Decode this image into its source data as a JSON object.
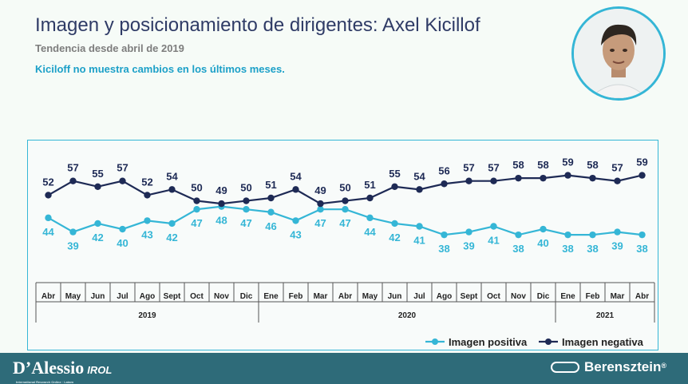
{
  "header": {
    "title": "Imagen y posicionamiento de dirigentes: Axel Kicillof",
    "subtitle": "Tendencia desde abril de 2019",
    "note": "Kiciloff no muestra cambios en los últimos meses."
  },
  "chart_data": {
    "type": "line",
    "categories": [
      "Abr",
      "May",
      "Jun",
      "Jul",
      "Ago",
      "Sept",
      "Oct",
      "Nov",
      "Dic",
      "Ene",
      "Feb",
      "Mar",
      "Abr",
      "May",
      "Jun",
      "Jul",
      "Ago",
      "Sept",
      "Oct",
      "Nov",
      "Dic",
      "Ene",
      "Feb",
      "Mar",
      "Abr"
    ],
    "years": [
      {
        "label": "2019",
        "from": 0,
        "to": 8
      },
      {
        "label": "2020",
        "from": 9,
        "to": 20
      },
      {
        "label": "2021",
        "from": 21,
        "to": 24
      }
    ],
    "series": [
      {
        "name": "Imagen positiva",
        "color": "#35b6d6",
        "values": [
          44,
          39,
          42,
          40,
          43,
          42,
          47,
          48,
          47,
          46,
          43,
          47,
          47,
          44,
          42,
          41,
          38,
          39,
          41,
          38,
          40,
          38,
          38,
          39,
          38
        ]
      },
      {
        "name": "Imagen negativa",
        "color": "#1e2a55",
        "values": [
          52,
          57,
          55,
          57,
          52,
          54,
          50,
          49,
          50,
          51,
          54,
          49,
          50,
          51,
          55,
          54,
          56,
          57,
          57,
          58,
          58,
          59,
          58,
          57,
          59
        ]
      }
    ],
    "legend_position": "bottom-right"
  },
  "footer": {
    "left_logo": "D’Alessio",
    "left_logo_suffix": "IROL",
    "left_logo_small": "International Research Online · Latam",
    "right_logo": "Berensztein",
    "right_logo_mark": "®"
  },
  "photo": {
    "icon": "portrait-photo"
  }
}
